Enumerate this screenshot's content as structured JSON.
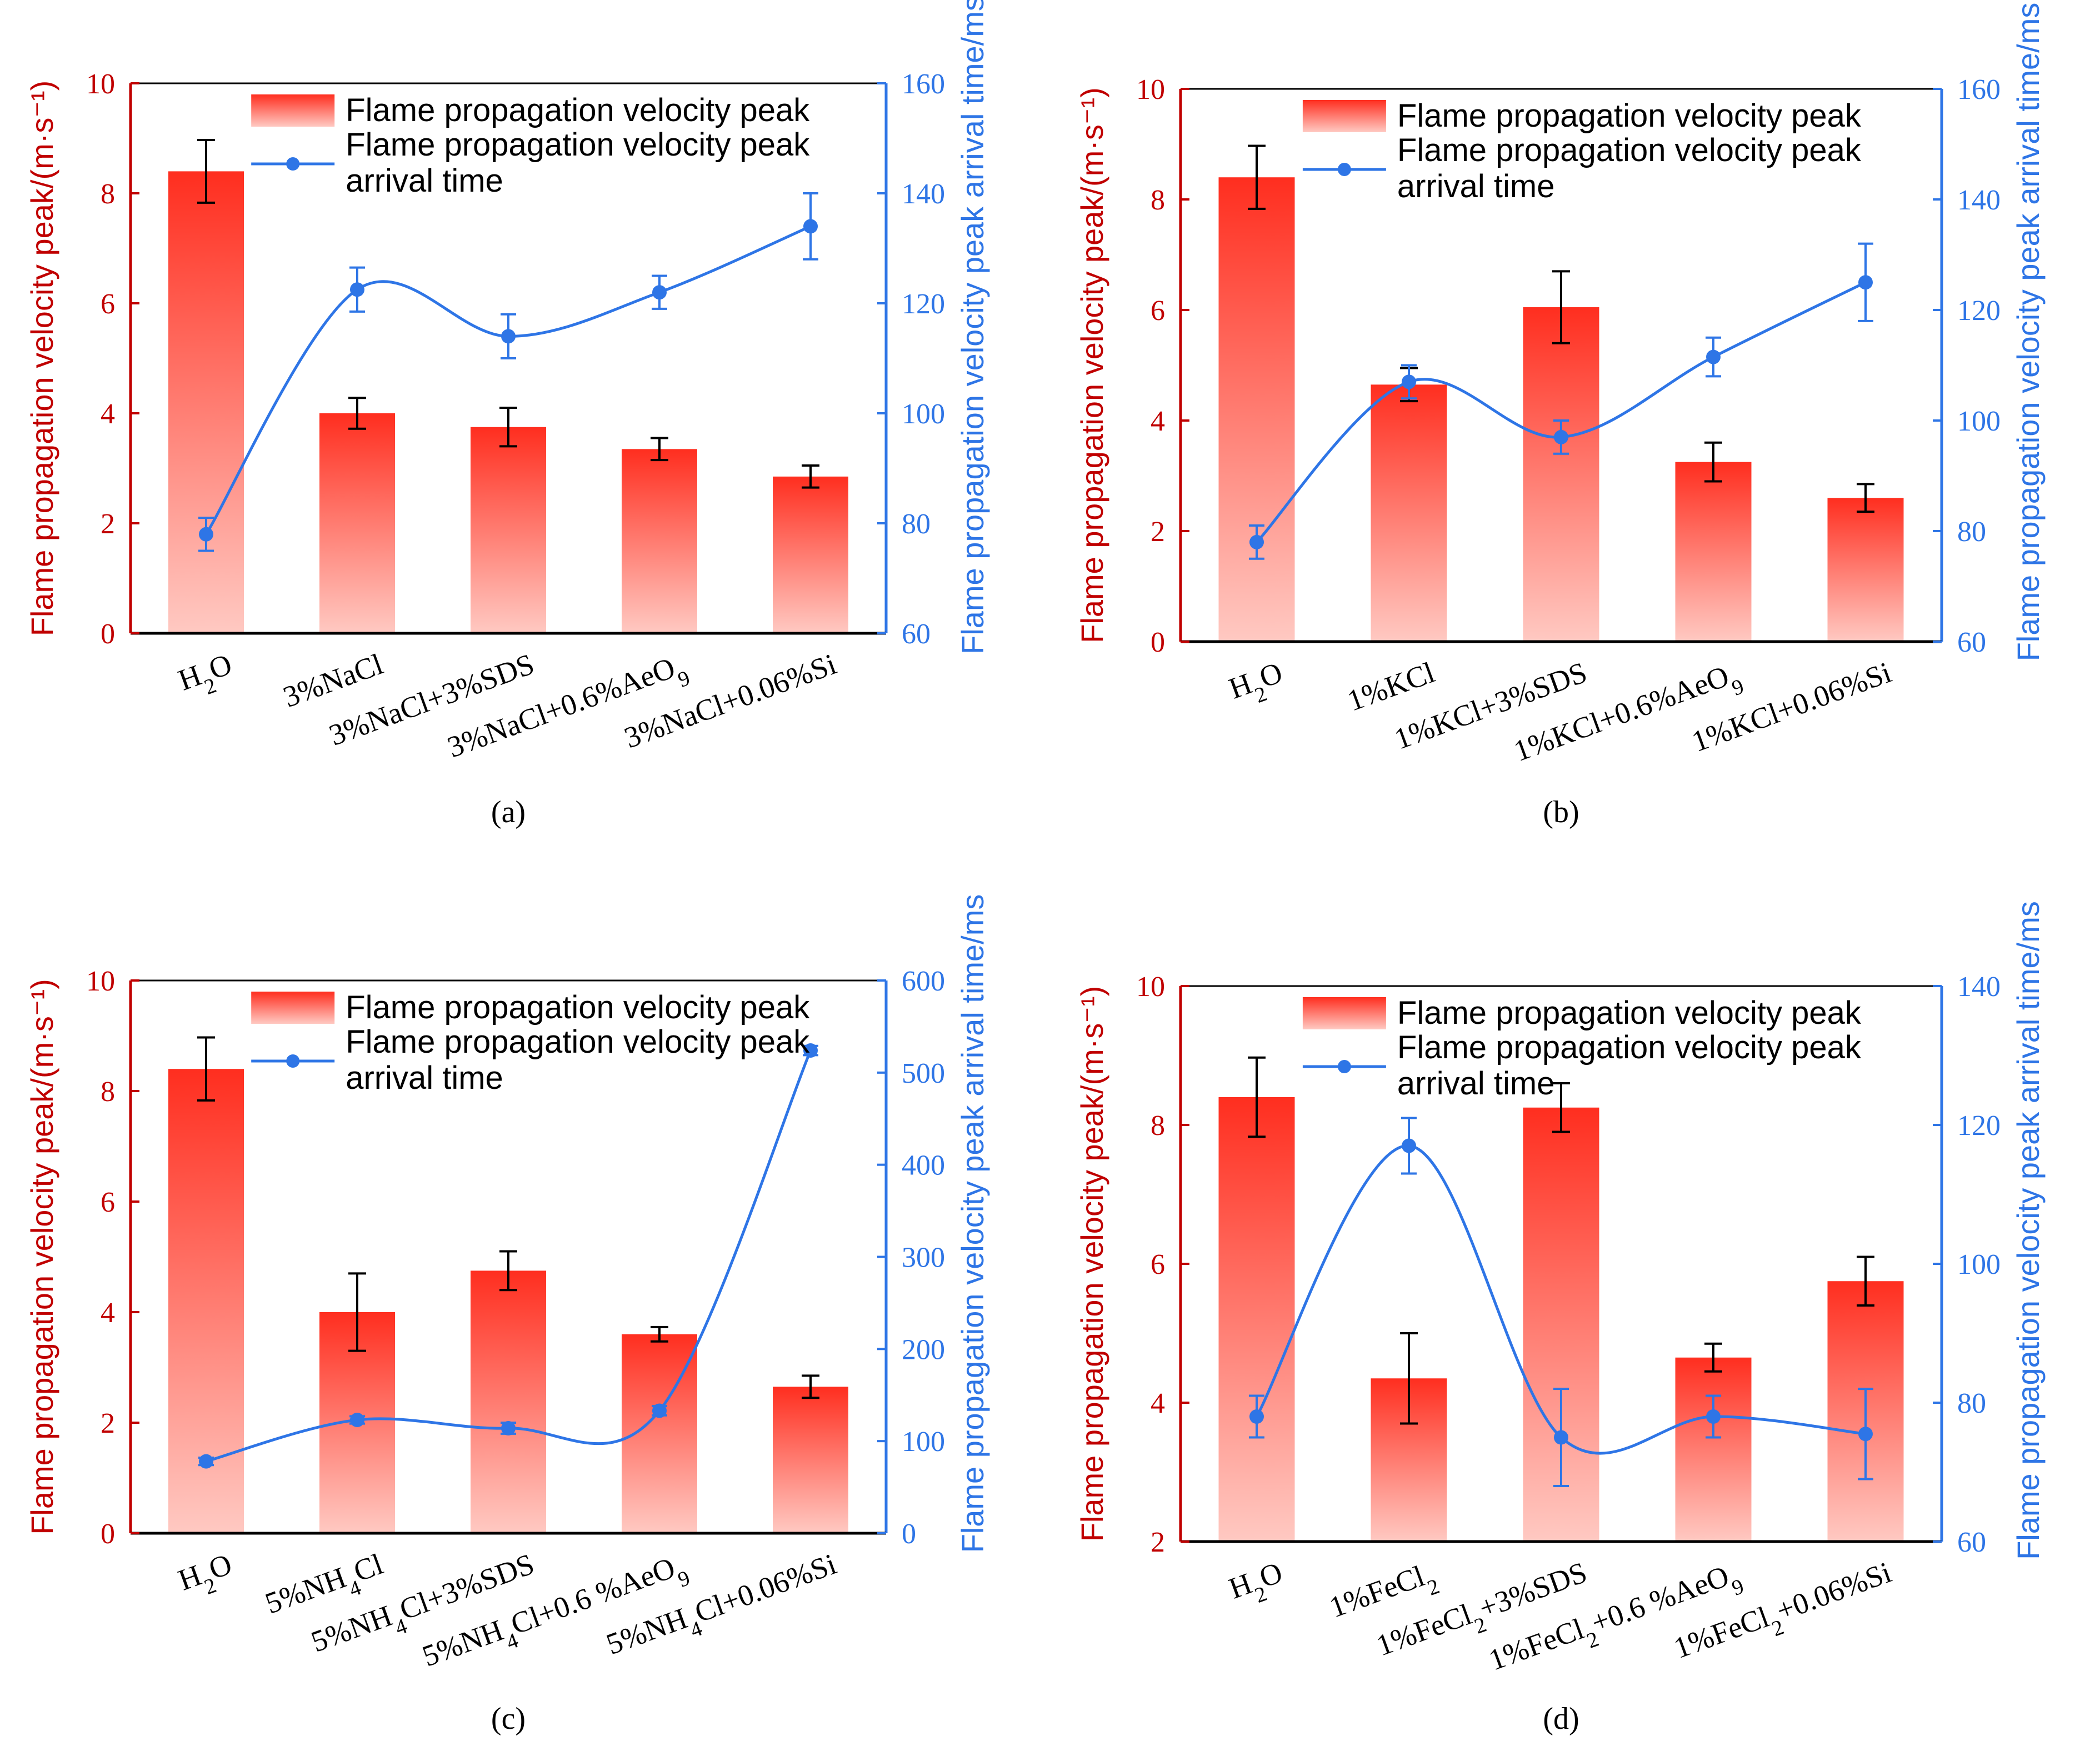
{
  "legend": {
    "bar_label": "Flame propagation velocity peak",
    "line_label_1": "Flame propagation velocity peak",
    "line_label_2": "arrival time"
  },
  "axis_titles": {
    "left": "Flame propagation velocity peak/(m·s⁻¹)",
    "right": "Flame propagation velocity peak arrival time/ms"
  },
  "colors": {
    "bar_top": "#ff2e1f",
    "bar_bottom": "#ffc9c2",
    "line": "#2e75e6",
    "left_axis": "#c00000",
    "right_axis": "#2e75e6"
  },
  "chart_data": [
    {
      "panel": "(a)",
      "type": "bar",
      "categories": [
        "H₂O",
        "3%NaCl",
        "3%NaCl+3%SDS",
        "3%NaCl+0.6%AeO₉",
        "3%NaCl+0.06%Si"
      ],
      "left_ylim": [
        0,
        10
      ],
      "left_ticks": [
        0,
        2,
        4,
        6,
        8,
        10
      ],
      "right_ylim": [
        60,
        160
      ],
      "right_ticks": [
        60,
        80,
        100,
        120,
        140,
        160
      ],
      "series": [
        {
          "name": "Flame propagation velocity peak",
          "axis": "left",
          "values": [
            8.4,
            4.0,
            3.75,
            3.35,
            2.85
          ],
          "errors": [
            0.57,
            0.28,
            0.35,
            0.2,
            0.2
          ]
        },
        {
          "name": "Flame propagation velocity peak arrival time",
          "axis": "right",
          "values": [
            78,
            122.5,
            114,
            122,
            134
          ],
          "errors": [
            3,
            4,
            4,
            3,
            6
          ]
        }
      ]
    },
    {
      "panel": "(b)",
      "type": "bar",
      "categories": [
        "H₂O",
        "1%KCl",
        "1%KCl+3%SDS",
        "1%KCl+0.6%AeO₉",
        "1%KCl+0.06%Si"
      ],
      "left_ylim": [
        0,
        10
      ],
      "left_ticks": [
        0,
        2,
        4,
        6,
        8,
        10
      ],
      "right_ylim": [
        60,
        160
      ],
      "right_ticks": [
        60,
        80,
        100,
        120,
        140,
        160
      ],
      "series": [
        {
          "name": "Flame propagation velocity peak",
          "axis": "left",
          "values": [
            8.4,
            4.65,
            6.05,
            3.25,
            2.6
          ],
          "errors": [
            0.57,
            0.3,
            0.65,
            0.35,
            0.25
          ]
        },
        {
          "name": "Flame propagation velocity peak arrival time",
          "axis": "right",
          "values": [
            78,
            107,
            97,
            111.5,
            125
          ],
          "errors": [
            3,
            3,
            3,
            3.5,
            7
          ]
        }
      ]
    },
    {
      "panel": "(c)",
      "type": "bar",
      "categories": [
        "H₂O",
        "5%NH₄Cl",
        "5%NH₄Cl+3%SDS",
        "5%NH₄Cl+0.6 %AeO₉",
        "5%NH₄Cl+0.06%Si"
      ],
      "left_ylim": [
        0,
        10
      ],
      "left_ticks": [
        0,
        2,
        4,
        6,
        8,
        10
      ],
      "right_ylim": [
        0,
        600
      ],
      "right_ticks": [
        0,
        100,
        200,
        300,
        400,
        500,
        600
      ],
      "series": [
        {
          "name": "Flame propagation velocity peak",
          "axis": "left",
          "values": [
            8.4,
            4.0,
            4.75,
            3.6,
            2.65
          ],
          "errors": [
            0.57,
            0.7,
            0.35,
            0.13,
            0.2
          ]
        },
        {
          "name": "Flame propagation velocity peak arrival time",
          "axis": "right",
          "values": [
            78,
            123,
            114,
            133,
            524
          ],
          "errors": [
            4,
            4,
            6,
            5,
            5
          ]
        }
      ]
    },
    {
      "panel": "(d)",
      "type": "bar",
      "categories": [
        "H₂O",
        "1%FeCl₂",
        "1%FeCl₂+3%SDS",
        "1%FeCl₂+0.6 %AeO₉",
        "1%FeCl₂+0.06%Si"
      ],
      "left_ylim": [
        2,
        10
      ],
      "left_ticks": [
        2,
        4,
        6,
        8,
        10
      ],
      "right_ylim": [
        60,
        140
      ],
      "right_ticks": [
        60,
        80,
        100,
        120,
        140
      ],
      "series": [
        {
          "name": "Flame propagation velocity peak",
          "axis": "left",
          "values": [
            8.4,
            4.35,
            8.25,
            4.65,
            5.75
          ],
          "errors": [
            0.57,
            0.65,
            0.35,
            0.2,
            0.35
          ]
        },
        {
          "name": "Flame propagation velocity peak arrival time",
          "axis": "right",
          "values": [
            78,
            117,
            75,
            78,
            75.5
          ],
          "errors": [
            3,
            4,
            7,
            3,
            6.5
          ]
        }
      ]
    }
  ]
}
